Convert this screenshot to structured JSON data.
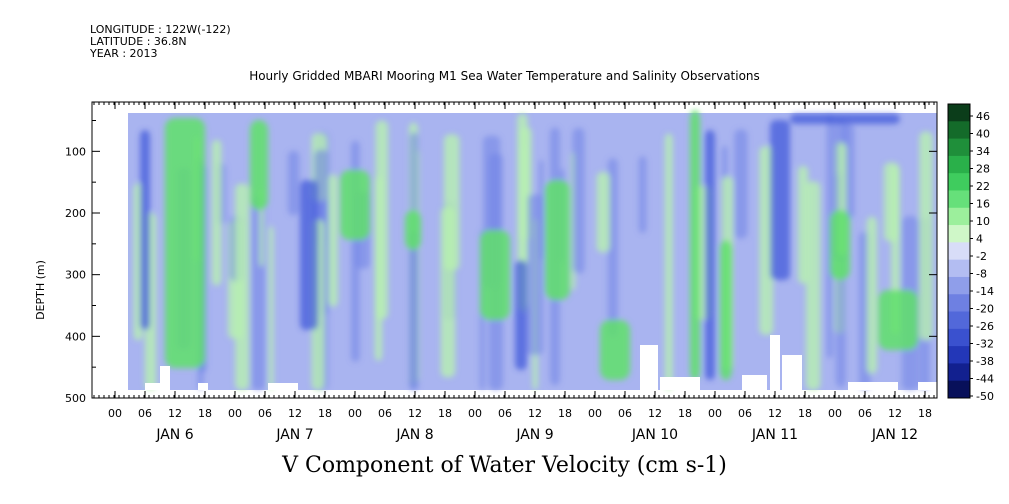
{
  "header": {
    "longitude": "LONGITUDE : 122W(-122)",
    "latitude": "LATITUDE : 36.8N",
    "year": "YEAR : 2013"
  },
  "chart_data": {
    "type": "heatmap",
    "title": "Hourly Gridded MBARI Mooring M1 Sea Water Temperature and Salinity Observations",
    "xlabel": "V Component of Water Velocity (cm s-1)",
    "ylabel": "DEPTH (m)",
    "y_ticks": [
      "100",
      "200",
      "300",
      "400",
      "500"
    ],
    "y_range": [
      20,
      500
    ],
    "y_inverted": true,
    "x_hour_ticks": [
      "00",
      "06",
      "12",
      "18",
      "00",
      "06",
      "12",
      "18",
      "00",
      "06",
      "12",
      "18",
      "00",
      "06",
      "12",
      "18",
      "00",
      "06",
      "12",
      "18",
      "00",
      "06",
      "12",
      "18",
      "00",
      "06",
      "12",
      "18"
    ],
    "x_days": [
      "JAN 6",
      "JAN 7",
      "JAN 8",
      "JAN 9",
      "JAN 10",
      "JAN 11",
      "JAN 12"
    ],
    "colorbar": {
      "labels": [
        "46",
        "40",
        "34",
        "28",
        "22",
        "16",
        "10",
        "4",
        "-2",
        "-8",
        "-14",
        "-20",
        "-26",
        "-32",
        "-38",
        "-44",
        "-50"
      ],
      "range": [
        -50,
        49
      ]
    },
    "colors": {
      "background_field": "#a9b4f0",
      "positive_light": "#b8f0b0",
      "positive_mid": "#5fe06a",
      "negative_mid": "#6f82e6",
      "negative_deep": "#3c55d8"
    }
  }
}
